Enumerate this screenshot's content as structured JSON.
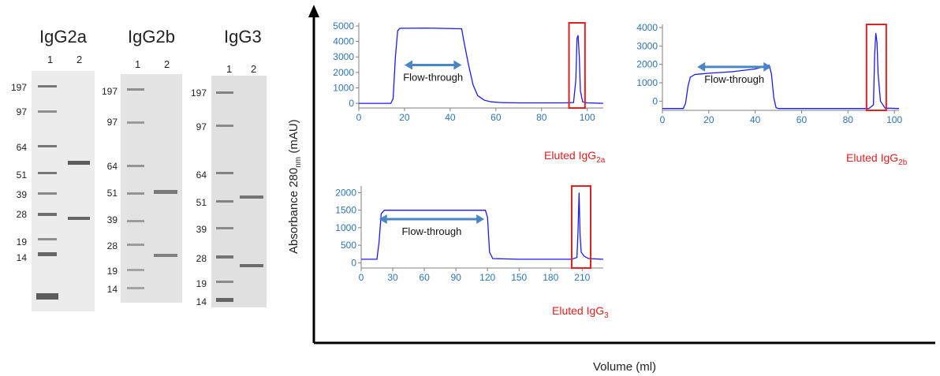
{
  "gels": [
    {
      "title": "IgG2a",
      "lanes": [
        "1",
        "2"
      ],
      "markers": [
        "197",
        "97",
        "64",
        "51",
        "39",
        "28",
        "19",
        "14"
      ]
    },
    {
      "title": "IgG2b",
      "lanes": [
        "1",
        "2"
      ],
      "markers": [
        "197",
        "97",
        "64",
        "51",
        "39",
        "28",
        "19",
        "14"
      ]
    },
    {
      "title": "IgG3",
      "lanes": [
        "1",
        "2"
      ],
      "markers": [
        "197",
        "97",
        "64",
        "51",
        "39",
        "28",
        "19",
        "14"
      ]
    }
  ],
  "axis_title_y_main": "Absorbance 280",
  "axis_title_y_sub": "nm",
  "axis_title_y_unit": "(mAU)",
  "axis_title_x": "Volume (ml)",
  "colors": {
    "trace": "#1a1aff",
    "box": "#e02020",
    "arrow": "#4a86c5",
    "tick": "#2e75b6"
  },
  "chart_data": [
    {
      "type": "line",
      "title": "",
      "xlabel": "",
      "ylabel": "",
      "xlim": [
        0,
        107
      ],
      "ylim": [
        -300,
        5000
      ],
      "xticks": [
        0,
        20,
        40,
        60,
        80,
        100
      ],
      "yticks": [
        0,
        1000,
        2000,
        3000,
        4000,
        5000
      ],
      "arrow_label": "Flow-through",
      "eluted_label": "Eluted IgG",
      "eluted_sub": "2a",
      "x": [
        0,
        14,
        15,
        16,
        17,
        18,
        30,
        45,
        46,
        48,
        50,
        52,
        55,
        58,
        62,
        70,
        90,
        94,
        95,
        95.5,
        96,
        96.5,
        97,
        98,
        100,
        107
      ],
      "y": [
        0,
        0,
        300,
        3000,
        4700,
        4850,
        4870,
        4820,
        4000,
        2500,
        1200,
        500,
        200,
        100,
        50,
        30,
        30,
        50,
        1500,
        4200,
        4400,
        3000,
        800,
        100,
        30,
        0
      ]
    },
    {
      "type": "line",
      "title": "",
      "xlabel": "",
      "ylabel": "",
      "xlim": [
        0,
        102
      ],
      "ylim": [
        -500,
        4000
      ],
      "xticks": [
        0,
        20,
        40,
        60,
        80,
        100
      ],
      "yticks": [
        0,
        1000,
        2000,
        3000,
        4000
      ],
      "arrow_label": "Flow-through",
      "eluted_label": "Eluted IgG",
      "eluted_sub": "2b",
      "x": [
        0,
        9,
        10,
        11,
        12,
        14,
        20,
        30,
        40,
        46,
        47,
        48,
        49,
        50,
        55,
        60,
        89,
        91,
        91.5,
        92,
        92.5,
        93,
        94,
        96,
        102
      ],
      "y": [
        -400,
        -400,
        -100,
        800,
        1300,
        1450,
        1520,
        1600,
        1750,
        1950,
        1500,
        200,
        -350,
        -400,
        -400,
        -400,
        -400,
        -200,
        2500,
        3700,
        3200,
        1500,
        0,
        -380,
        -400
      ]
    },
    {
      "type": "line",
      "title": "",
      "xlabel": "",
      "ylabel": "",
      "xlim": [
        0,
        230
      ],
      "ylim": [
        -150,
        2100
      ],
      "xticks": [
        0,
        30,
        60,
        90,
        120,
        150,
        180,
        210
      ],
      "yticks": [
        0,
        500,
        1000,
        1500,
        2000
      ],
      "arrow_label": "Flow-through",
      "eluted_label": "Eluted IgG",
      "eluted_sub": "3",
      "x": [
        0,
        15,
        17,
        19,
        22,
        60,
        100,
        118,
        120,
        122,
        125,
        150,
        200,
        205,
        206,
        207,
        208,
        209,
        212,
        216,
        230
      ],
      "y": [
        100,
        100,
        600,
        1400,
        1500,
        1500,
        1500,
        1500,
        1300,
        300,
        120,
        100,
        100,
        150,
        900,
        2000,
        800,
        300,
        180,
        120,
        100
      ]
    }
  ]
}
